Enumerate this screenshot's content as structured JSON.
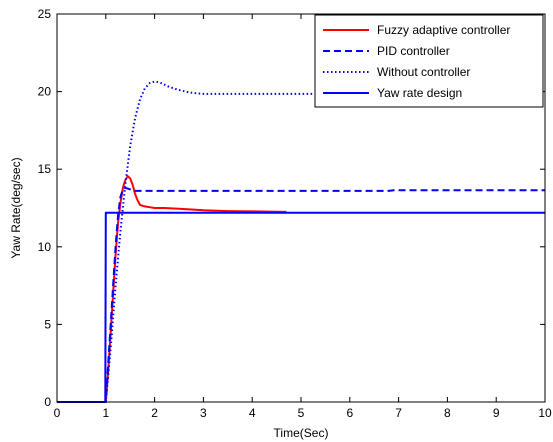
{
  "chart_data": {
    "type": "line",
    "title": "",
    "xlabel": "Time(Sec)",
    "ylabel": "Yaw Rate(deg/sec)",
    "xlim": [
      0,
      10
    ],
    "ylim": [
      0,
      25
    ],
    "xticks": [
      0,
      1,
      2,
      3,
      4,
      5,
      6,
      7,
      8,
      9,
      10
    ],
    "yticks": [
      0,
      5,
      10,
      15,
      20,
      25
    ],
    "grid": false,
    "legend_position": "top-right",
    "series": [
      {
        "name": "Fuzzy adaptive controller",
        "color": "#ff0000",
        "style": "solid",
        "x": [
          0,
          1.0,
          1.05,
          1.1,
          1.15,
          1.2,
          1.25,
          1.3,
          1.35,
          1.4,
          1.45,
          1.5,
          1.55,
          1.6,
          1.65,
          1.7,
          1.8,
          1.9,
          2.0,
          2.2,
          2.5,
          2.8,
          3.0,
          3.5,
          4.0,
          4.5,
          4.7
        ],
        "y": [
          0,
          0,
          2.0,
          4.5,
          7.0,
          9.5,
          11.5,
          12.8,
          13.8,
          14.3,
          14.55,
          14.4,
          14.0,
          13.4,
          13.0,
          12.7,
          12.6,
          12.55,
          12.5,
          12.5,
          12.45,
          12.4,
          12.35,
          12.3,
          12.28,
          12.26,
          12.25
        ]
      },
      {
        "name": "PID controller",
        "color": "#0000ff",
        "style": "dashed",
        "x": [
          0,
          1.0,
          1.05,
          1.1,
          1.15,
          1.2,
          1.25,
          1.3,
          1.35,
          1.4,
          1.5,
          1.6,
          1.8,
          2.0,
          3.0,
          5.0,
          6.8,
          6.9,
          8.0,
          10.0
        ],
        "y": [
          0,
          0,
          2.5,
          5.0,
          7.5,
          10.0,
          12.0,
          13.2,
          13.7,
          13.8,
          13.7,
          13.6,
          13.6,
          13.6,
          13.6,
          13.6,
          13.6,
          13.65,
          13.65,
          13.65
        ]
      },
      {
        "name": "Without controller",
        "color": "#0000ff",
        "style": "dotted",
        "x": [
          0,
          1.0,
          1.1,
          1.2,
          1.3,
          1.4,
          1.5,
          1.6,
          1.7,
          1.8,
          1.9,
          2.0,
          2.1,
          2.2,
          2.3,
          2.5,
          2.7,
          2.9,
          3.0,
          3.5,
          4.0,
          5.0,
          5.3
        ],
        "y": [
          0,
          0,
          3.5,
          7.5,
          11.0,
          14.0,
          16.5,
          18.3,
          19.5,
          20.2,
          20.55,
          20.65,
          20.6,
          20.45,
          20.3,
          20.1,
          19.95,
          19.88,
          19.85,
          19.85,
          19.85,
          19.85,
          19.85
        ]
      },
      {
        "name": "Yaw rate design",
        "color": "#0000ff",
        "style": "solid",
        "x": [
          0,
          0.99,
          1.0,
          10.0
        ],
        "y": [
          0,
          0,
          12.2,
          12.2
        ]
      }
    ]
  }
}
